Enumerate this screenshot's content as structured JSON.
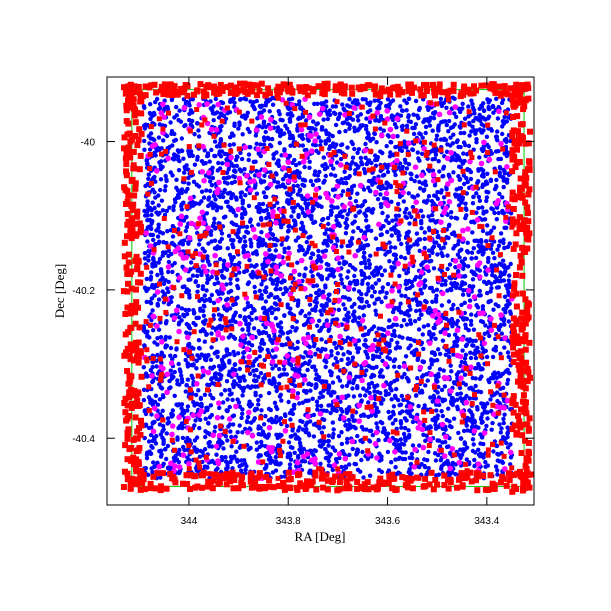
{
  "chart_data": {
    "type": "scatter",
    "title": "",
    "xlabel": "RA [Deg]",
    "ylabel": "Dec [Deg]",
    "x_direction": "decreasing",
    "xlim": [
      344.165,
      343.305
    ],
    "ylim": [
      -40.49,
      -39.913
    ],
    "x_ticks": [
      344,
      343.8,
      343.6,
      343.4
    ],
    "x_tick_labels": [
      "344",
      "343.8",
      "343.6",
      "343.4"
    ],
    "y_ticks": [
      -40,
      -40.2,
      -40.4
    ],
    "y_tick_labels": [
      "-40",
      "-40.2",
      "-40.4"
    ],
    "grid": false,
    "legend": "none",
    "field_bounds": {
      "ra": [
        344.115,
        343.325
      ],
      "dec": [
        -40.465,
        -39.93
      ]
    },
    "series": [
      {
        "color": "#0000ff",
        "marker": "circle",
        "count_estimate": 5200
      },
      {
        "color": "#ff00ff",
        "marker": "circle",
        "count_estimate": 450
      },
      {
        "color": "#ff0000",
        "marker": "square",
        "count_estimate": 1300,
        "note": "dense along field border"
      }
    ],
    "outline_color": "#00cc00"
  }
}
